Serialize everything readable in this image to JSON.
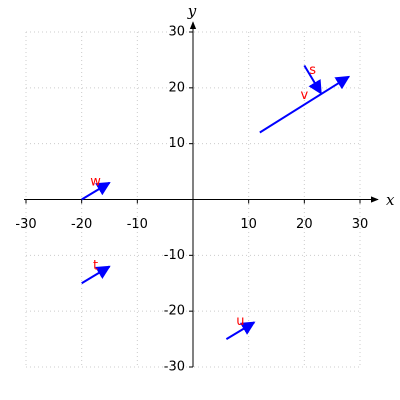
{
  "chart_data": {
    "type": "vector",
    "x_label": "x",
    "y_label": "y",
    "xlim": [
      -30,
      30
    ],
    "ylim": [
      -30,
      30
    ],
    "xticks": [
      -30,
      -20,
      -10,
      10,
      20,
      30
    ],
    "yticks": [
      -30,
      -20,
      -10,
      10,
      20,
      30
    ],
    "grid": true,
    "color": "#0000ff",
    "label_color": "#ff0000",
    "vectors": [
      {
        "name": "s",
        "x": 20,
        "y": 24,
        "dx": 3,
        "dy": -5
      },
      {
        "name": "v",
        "x": 12,
        "y": 12,
        "dx": 16,
        "dy": 10
      },
      {
        "name": "w",
        "x": -20,
        "y": 0,
        "dx": 5,
        "dy": 3
      },
      {
        "name": "t",
        "x": -20,
        "y": -15,
        "dx": 5,
        "dy": 3
      },
      {
        "name": "u",
        "x": 6,
        "y": -25,
        "dx": 5,
        "dy": 3
      }
    ]
  }
}
